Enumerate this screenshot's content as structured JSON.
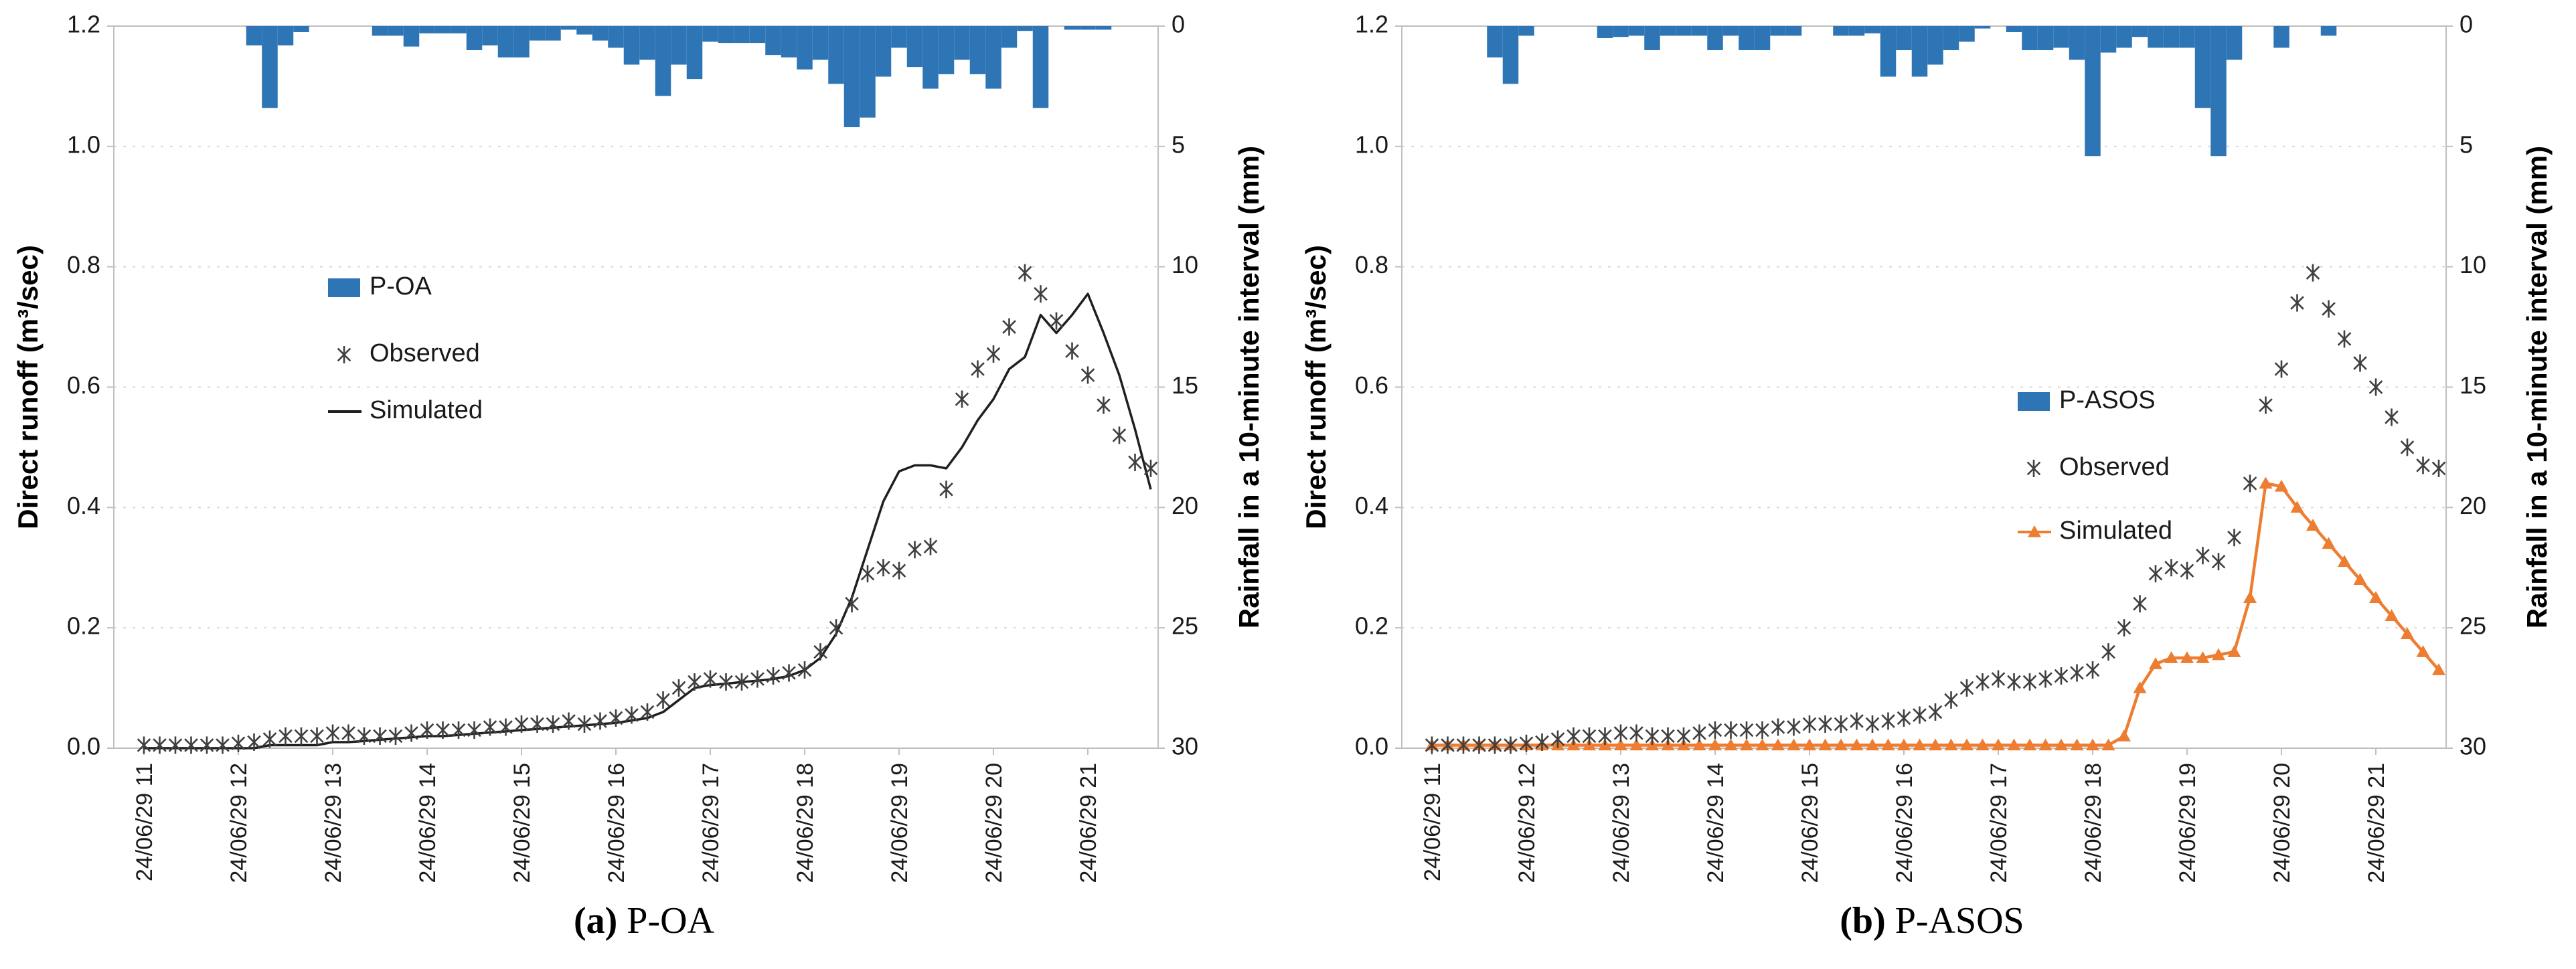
{
  "figure": {
    "background": "#ffffff",
    "accent_blue": "#2E75B6",
    "accent_orange": "#ED7D31",
    "observed_marker_color": "#3f3f3f",
    "gridline_color": "#d9d9d9",
    "axis_line_color": "#bfbfbf",
    "text_color": "#1a1a1a"
  },
  "chart_data": [
    {
      "type": "combo_bar_line",
      "caption": {
        "prefix": "(a)",
        "label": "P-OA"
      },
      "left_axis": {
        "label": "Direct runoff (m³/sec)",
        "ticks": [
          "0.0",
          "0.2",
          "0.4",
          "0.6",
          "0.8",
          "1.0",
          "1.2"
        ],
        "range": [
          0,
          1.2
        ]
      },
      "right_axis": {
        "label": "Rainfall in a 10-minute interval (mm)",
        "ticks": [
          "0",
          "5",
          "10",
          "15",
          "20",
          "25",
          "30"
        ],
        "range": [
          0,
          30
        ],
        "inverted": true
      },
      "x_axis": {
        "tick_labels": [
          "24/06/29 11",
          "24/06/29 12",
          "24/06/29 13",
          "24/06/29 14",
          "24/06/29 15",
          "24/06/29 16",
          "24/06/29 17",
          "24/06/29 18",
          "24/06/29 19",
          "24/06/29 20",
          "24/06/29 21"
        ],
        "time_start": "11:00",
        "time_step_minutes": 10,
        "n_points": 65
      },
      "legend": [
        {
          "label": "P-OA",
          "type": "bar",
          "color": "#2E75B6"
        },
        {
          "label": "Observed",
          "type": "marker",
          "color": "#3f3f3f"
        },
        {
          "label": "Simulated",
          "type": "line",
          "color": "#1f1f1f"
        }
      ],
      "series": {
        "rainfall_mm": [
          0,
          0,
          0,
          0,
          0,
          0,
          0,
          0.8,
          3.4,
          0.8,
          0.25,
          0,
          0,
          0,
          0,
          0.4,
          0.4,
          0.85,
          0.3,
          0.3,
          0.3,
          1.0,
          0.8,
          1.3,
          1.3,
          0.6,
          0.6,
          0.15,
          0.35,
          0.6,
          0.9,
          1.6,
          1.4,
          2.9,
          1.6,
          2.2,
          0.65,
          0.7,
          0.7,
          0.7,
          1.2,
          1.3,
          1.8,
          1.4,
          2.4,
          4.2,
          3.8,
          2.1,
          0.9,
          1.7,
          2.6,
          2.0,
          1.4,
          2.0,
          2.6,
          0.9,
          0.2,
          3.4,
          0,
          0.15,
          0.15,
          0.15,
          0,
          0,
          0
        ],
        "observed": [
          0.005,
          0.005,
          0.005,
          0.005,
          0.005,
          0.005,
          0.008,
          0.01,
          0.015,
          0.02,
          0.02,
          0.02,
          0.025,
          0.025,
          0.02,
          0.02,
          0.02,
          0.025,
          0.03,
          0.03,
          0.03,
          0.03,
          0.035,
          0.035,
          0.04,
          0.04,
          0.04,
          0.045,
          0.04,
          0.045,
          0.05,
          0.055,
          0.06,
          0.08,
          0.1,
          0.11,
          0.115,
          0.11,
          0.11,
          0.115,
          0.12,
          0.125,
          0.13,
          0.16,
          0.2,
          0.24,
          0.29,
          0.3,
          0.295,
          0.33,
          0.335,
          0.43,
          0.58,
          0.63,
          0.655,
          0.7,
          0.79,
          0.755,
          0.71,
          0.66,
          0.62,
          0.57,
          0.52,
          0.475,
          0.465
        ],
        "simulated": [
          0,
          0,
          0,
          0,
          0,
          0,
          0,
          0,
          0.005,
          0.005,
          0.005,
          0.005,
          0.01,
          0.01,
          0.012,
          0.014,
          0.016,
          0.018,
          0.02,
          0.02,
          0.022,
          0.024,
          0.026,
          0.028,
          0.03,
          0.032,
          0.034,
          0.036,
          0.038,
          0.04,
          0.042,
          0.046,
          0.05,
          0.06,
          0.08,
          0.1,
          0.105,
          0.107,
          0.11,
          0.112,
          0.115,
          0.12,
          0.13,
          0.15,
          0.19,
          0.25,
          0.33,
          0.41,
          0.46,
          0.47,
          0.47,
          0.465,
          0.5,
          0.545,
          0.58,
          0.63,
          0.65,
          0.72,
          0.69,
          0.72,
          0.755,
          0.69,
          0.62,
          0.53,
          0.43
        ]
      }
    },
    {
      "type": "combo_bar_line",
      "caption": {
        "prefix": "(b)",
        "label": "P-ASOS"
      },
      "left_axis": {
        "label": "Direct runoff (m³/sec)",
        "ticks": [
          "0.0",
          "0.2",
          "0.4",
          "0.6",
          "0.8",
          "1.0",
          "1.2"
        ],
        "range": [
          0,
          1.2
        ]
      },
      "right_axis": {
        "label": "Rainfall in a 10-minute interval (mm)",
        "ticks": [
          "0",
          "5",
          "10",
          "15",
          "20",
          "25",
          "30"
        ],
        "range": [
          0,
          30
        ],
        "inverted": true
      },
      "x_axis": {
        "tick_labels": [
          "24/06/29 11",
          "24/06/29 12",
          "24/06/29 13",
          "24/06/29 14",
          "24/06/29 15",
          "24/06/29 16",
          "24/06/29 17",
          "24/06/29 18",
          "24/06/29 19",
          "24/06/29 20",
          "24/06/29 21"
        ],
        "time_start": "11:00",
        "time_step_minutes": 10,
        "n_points": 65
      },
      "legend": [
        {
          "label": "P-ASOS",
          "type": "bar",
          "color": "#2E75B6"
        },
        {
          "label": "Observed",
          "type": "marker",
          "color": "#3f3f3f"
        },
        {
          "label": "Simulated",
          "type": "line-triangle",
          "color": "#ED7D31"
        }
      ],
      "series": {
        "rainfall_mm": [
          0,
          0,
          0,
          0,
          1.3,
          2.4,
          0.4,
          0,
          0,
          0,
          0,
          0.5,
          0.45,
          0.4,
          1.0,
          0.4,
          0.4,
          0.4,
          1.0,
          0.4,
          1.0,
          1.0,
          0.4,
          0.4,
          0,
          0,
          0.4,
          0.4,
          0.3,
          2.1,
          1.0,
          2.1,
          1.6,
          1.0,
          0.65,
          0.1,
          0,
          0.25,
          1.0,
          1.0,
          0.9,
          1.4,
          5.4,
          1.1,
          0.9,
          0.45,
          0.9,
          0.9,
          0.9,
          3.4,
          5.4,
          1.4,
          0,
          0,
          0.9,
          0,
          0,
          0.4,
          0,
          0,
          0,
          0,
          0,
          0,
          0
        ],
        "observed": [
          0.005,
          0.005,
          0.005,
          0.005,
          0.005,
          0.005,
          0.008,
          0.01,
          0.015,
          0.02,
          0.02,
          0.02,
          0.025,
          0.025,
          0.02,
          0.02,
          0.02,
          0.025,
          0.03,
          0.03,
          0.03,
          0.03,
          0.035,
          0.035,
          0.04,
          0.04,
          0.04,
          0.045,
          0.04,
          0.045,
          0.05,
          0.055,
          0.06,
          0.08,
          0.1,
          0.11,
          0.115,
          0.11,
          0.11,
          0.115,
          0.12,
          0.125,
          0.13,
          0.16,
          0.2,
          0.24,
          0.29,
          0.3,
          0.295,
          0.32,
          0.31,
          0.35,
          0.44,
          0.57,
          0.63,
          0.74,
          0.79,
          0.73,
          0.68,
          0.64,
          0.6,
          0.55,
          0.5,
          0.47,
          0.465
        ],
        "simulated": [
          0.005,
          0.005,
          0.005,
          0.005,
          0.005,
          0.005,
          0.005,
          0.005,
          0.005,
          0.005,
          0.005,
          0.005,
          0.005,
          0.005,
          0.005,
          0.005,
          0.005,
          0.005,
          0.005,
          0.005,
          0.005,
          0.005,
          0.005,
          0.005,
          0.005,
          0.005,
          0.005,
          0.005,
          0.005,
          0.005,
          0.005,
          0.005,
          0.005,
          0.005,
          0.005,
          0.005,
          0.005,
          0.005,
          0.005,
          0.005,
          0.005,
          0.005,
          0.005,
          0.005,
          0.02,
          0.1,
          0.14,
          0.15,
          0.15,
          0.15,
          0.155,
          0.16,
          0.25,
          0.44,
          0.435,
          0.4,
          0.37,
          0.34,
          0.31,
          0.28,
          0.25,
          0.22,
          0.19,
          0.16,
          0.13
        ]
      }
    }
  ]
}
